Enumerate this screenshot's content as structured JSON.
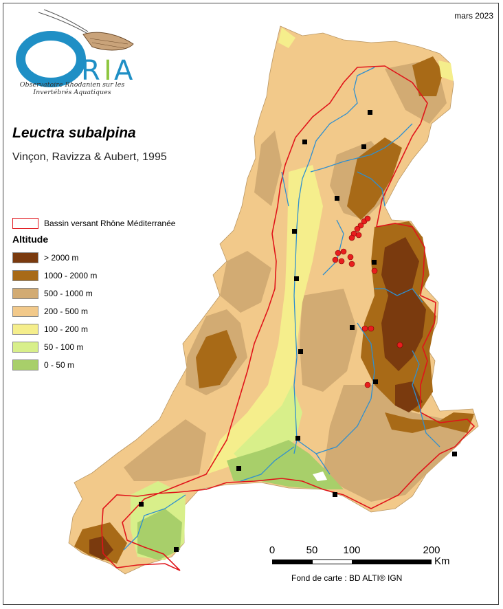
{
  "header": {
    "date": "mars 2023"
  },
  "logo": {
    "wordmark": "ORIA",
    "subtitle_line1": "Observatoire Rhodanien sur les",
    "subtitle_line2": "Invertébrés Aquatiques"
  },
  "species": {
    "name": "Leuctra subalpina",
    "author": "Vinçon, Ravizza & Aubert, 1995"
  },
  "legend": {
    "basin_label": "Bassin versant Rhône Méditerranée",
    "altitude_title": "Altitude",
    "classes": [
      {
        "label": "> 2000 m",
        "color": "#7a3a0e"
      },
      {
        "label": "1000 - 2000 m",
        "color": "#a86a17"
      },
      {
        "label": "500 - 1000 m",
        "color": "#d2ab73"
      },
      {
        "label": "200 - 500 m",
        "color": "#f2c98a"
      },
      {
        "label": "100 - 200 m",
        "color": "#f5ee8c"
      },
      {
        "label": "50 - 100 m",
        "color": "#d8ef8a"
      },
      {
        "label": "0 - 50 m",
        "color": "#a8cf6a"
      }
    ]
  },
  "colors": {
    "basin_outline": "#e0141a",
    "river": "#2e8fd0",
    "observation": "#e81e1e",
    "city": "#000000"
  },
  "scale": {
    "ticks": [
      "0",
      "50",
      "100",
      "200"
    ],
    "unit": "Km"
  },
  "source": "Fond de carte : BD ALTI® IGN"
}
